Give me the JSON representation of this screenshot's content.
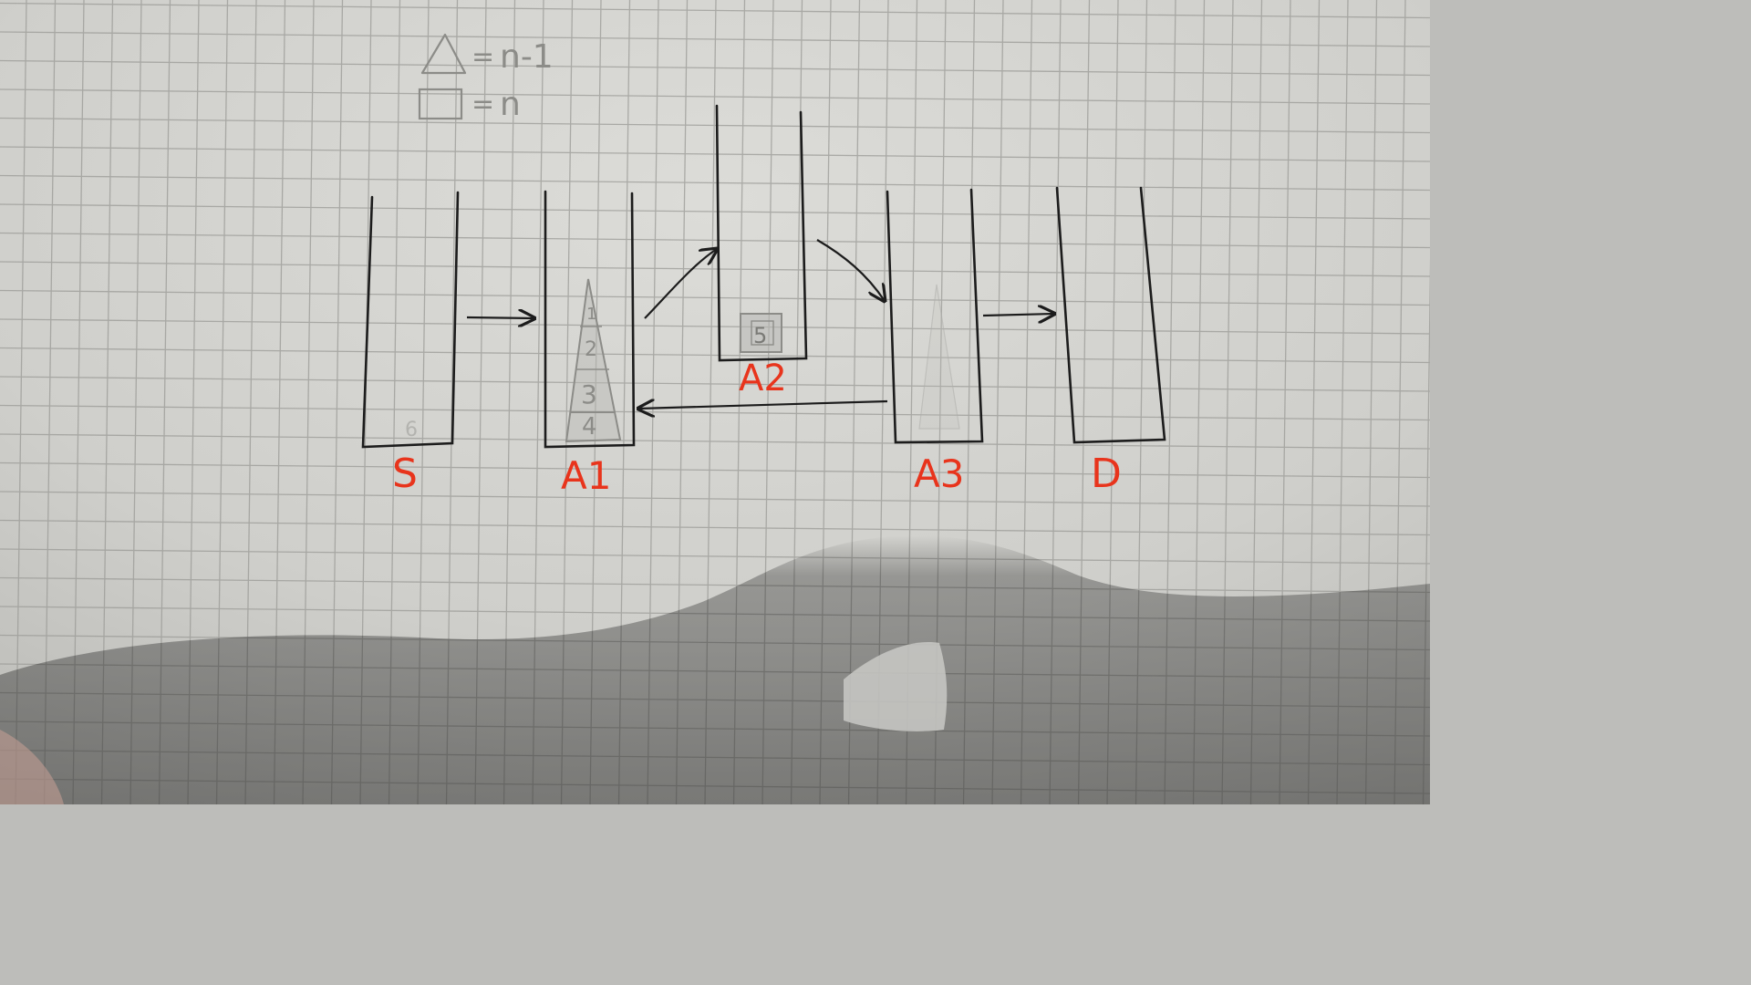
{
  "legend": {
    "triangle_value": "n-1",
    "square_value": "n",
    "equals_sign": "="
  },
  "pegs": {
    "s_label": "S",
    "a1_label": "A1",
    "a2_label": "A2",
    "a3_label": "A3",
    "d_label": "D"
  },
  "disks": {
    "stack_labels": [
      "1",
      "2",
      "3",
      "4"
    ],
    "a2_disk_label": "5",
    "s_faint_label": "6"
  },
  "colors": {
    "label_red": "#e8341c",
    "ink": "#1c1c1c",
    "pencil": "#8c8c88",
    "paper": "#d4d4d0",
    "grid": "#9a9a96"
  }
}
